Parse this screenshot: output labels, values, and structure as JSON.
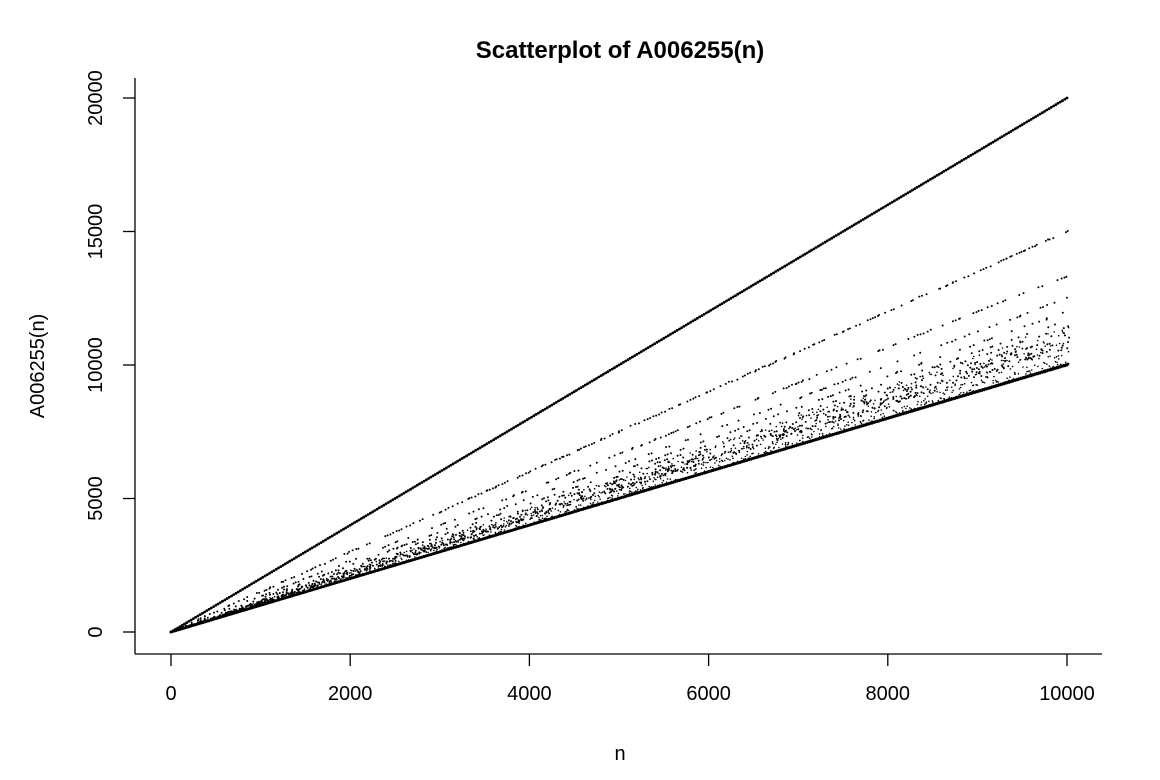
{
  "chart_data": {
    "type": "scatter",
    "title": "Scatterplot of A006255(n)",
    "xlabel": "n",
    "ylabel": "A006255(n)",
    "xlim": [
      0,
      10000
    ],
    "ylim": [
      0,
      20000
    ],
    "xticks": [
      0,
      2000,
      4000,
      6000,
      8000,
      10000
    ],
    "yticks": [
      0,
      5000,
      10000,
      15000,
      20000
    ],
    "xtick_labels": [
      "0",
      "2000",
      "4000",
      "6000",
      "8000",
      "10000"
    ],
    "ytick_labels": [
      "0",
      "5000",
      "10000",
      "15000",
      "20000"
    ],
    "grid": false,
    "legend": null,
    "point_color": "#000000",
    "series": [
      {
        "description_ray_slopes": [
          2.0,
          1.5,
          1.3333,
          1.25,
          1.2,
          1.1667,
          1.1429,
          1.125,
          1.1111,
          1.1,
          1.0909,
          1.0833,
          1.0769,
          1.0714,
          1.0667,
          1.0625,
          1.0,
          1.0
        ]
      }
    ],
    "x_samples": [
      0,
      1000,
      2000,
      3000,
      4000,
      5000,
      6000,
      7000,
      8000,
      9000,
      10000
    ],
    "y_on_upper_ray": [
      0,
      2000,
      4000,
      6000,
      8000,
      10000,
      12000,
      14000,
      16000,
      18000,
      20000
    ],
    "y_on_lower_ray": [
      0,
      1000,
      2000,
      3000,
      4000,
      5000,
      6000,
      7000,
      8000,
      9000,
      10000
    ]
  }
}
